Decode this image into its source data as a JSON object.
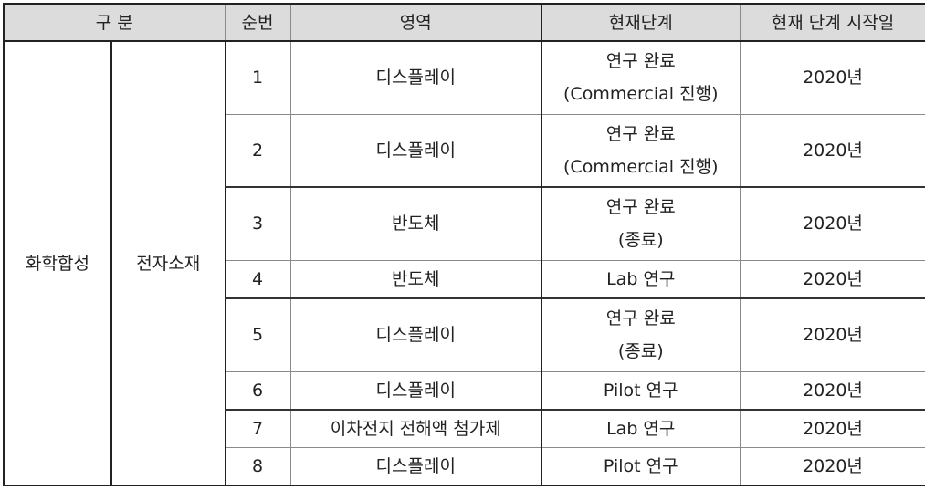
{
  "headers": [
    "구 분",
    "순번",
    "영역",
    "현재단계",
    "현재 단계 시작일"
  ],
  "category1": "화학합성",
  "category2": "전자소재",
  "rows": [
    {
      "no": "1",
      "area": "디스플레이",
      "stage_line1": "연구 완료",
      "stage_line2": "(Commercial 진행)",
      "start": "2020년"
    },
    {
      "no": "2",
      "area": "디스플레이",
      "stage_line1": "연구 완료",
      "stage_line2": "(Commercial 진행)",
      "start": "2020년"
    },
    {
      "no": "3",
      "area": "반도체",
      "stage_line1": "연구 완료",
      "stage_line2": "(종료)",
      "start": "2020년"
    },
    {
      "no": "4",
      "area": "반도체",
      "stage_line1": "Lab 연구",
      "stage_line2": "",
      "start": "2020년"
    },
    {
      "no": "5",
      "area": "디스플레이",
      "stage_line1": "연구 완료",
      "stage_line2": "(종료)",
      "start": "2020년"
    },
    {
      "no": "6",
      "area": "디스플레이",
      "stage_line1": "Pilot 연구",
      "stage_line2": "",
      "start": "2020년"
    },
    {
      "no": "7",
      "area": "이차전지 전해액 첨가제",
      "stage_line1": "Lab 연구",
      "stage_line2": "",
      "start": "2020년"
    },
    {
      "no": "8",
      "area": "디스플레이",
      "stage_line1": "Pilot 연구",
      "stage_line2": "",
      "start": "2020년"
    }
  ]
}
